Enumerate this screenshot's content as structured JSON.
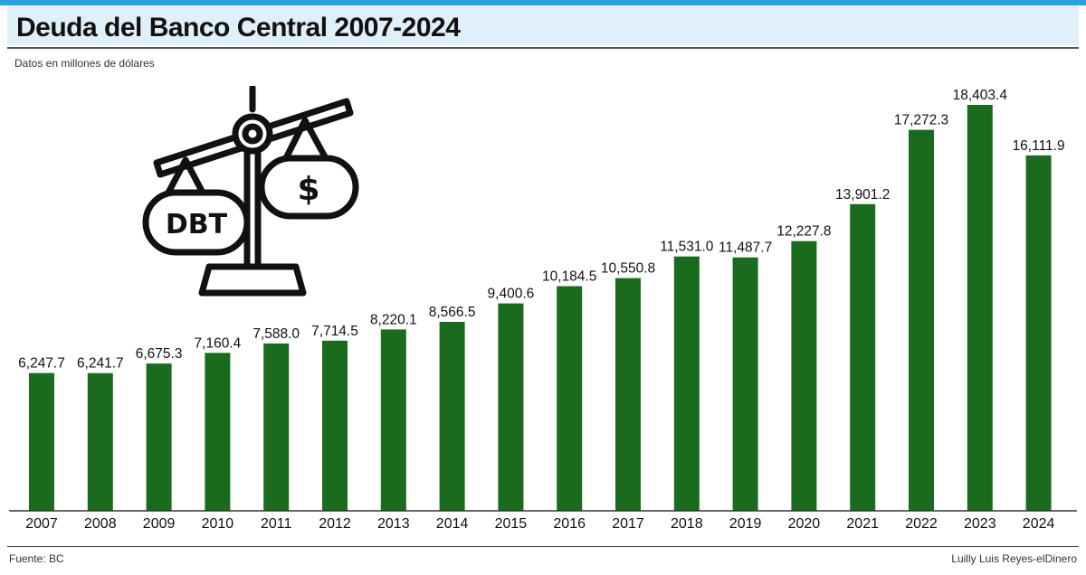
{
  "header": {
    "title": "Deuda del Banco Central 2007-2024",
    "subtitle": "Datos en millones de dólares"
  },
  "footer": {
    "source": "Fuente: BC",
    "credit": "Luilly Luis Reyes-elDinero"
  },
  "illustration": {
    "icon": "debt-scale-icon",
    "left_pan_text": "DBT",
    "right_pan_text": "$"
  },
  "colors": {
    "bar": "#1a6b1e",
    "accent": "#29a3dd",
    "title_bg": "#dff0fa"
  },
  "chart_data": {
    "type": "bar",
    "title": "Deuda del Banco Central 2007-2024",
    "subtitle": "Datos en millones de dólares",
    "categories": [
      "2007",
      "2008",
      "2009",
      "2010",
      "2011",
      "2012",
      "2013",
      "2014",
      "2015",
      "2016",
      "2017",
      "2018",
      "2019",
      "2020",
      "2021",
      "2022",
      "2023",
      "2024"
    ],
    "values": [
      6247.7,
      6241.7,
      6675.3,
      7160.4,
      7588.0,
      7714.5,
      8220.1,
      8566.5,
      9400.6,
      10184.5,
      10550.8,
      11531.0,
      11487.7,
      12227.8,
      13901.2,
      17272.3,
      18403.4,
      16111.9
    ],
    "value_labels": [
      "6,247.7",
      "6,241.7",
      "6,675.3",
      "7,160.4",
      "7,588.0",
      "7,714.5",
      "8,220.1",
      "8,566.5",
      "9,400.6",
      "10,184.5",
      "10,550.8",
      "11,531.0",
      "11,487.7",
      "12,227.8",
      "13,901.2",
      "17,272.3",
      "18,403.4",
      "16,111.9"
    ],
    "xlabel": "",
    "ylabel": "",
    "ylim": [
      0,
      18403.4
    ],
    "grid": false,
    "legend": "none"
  }
}
